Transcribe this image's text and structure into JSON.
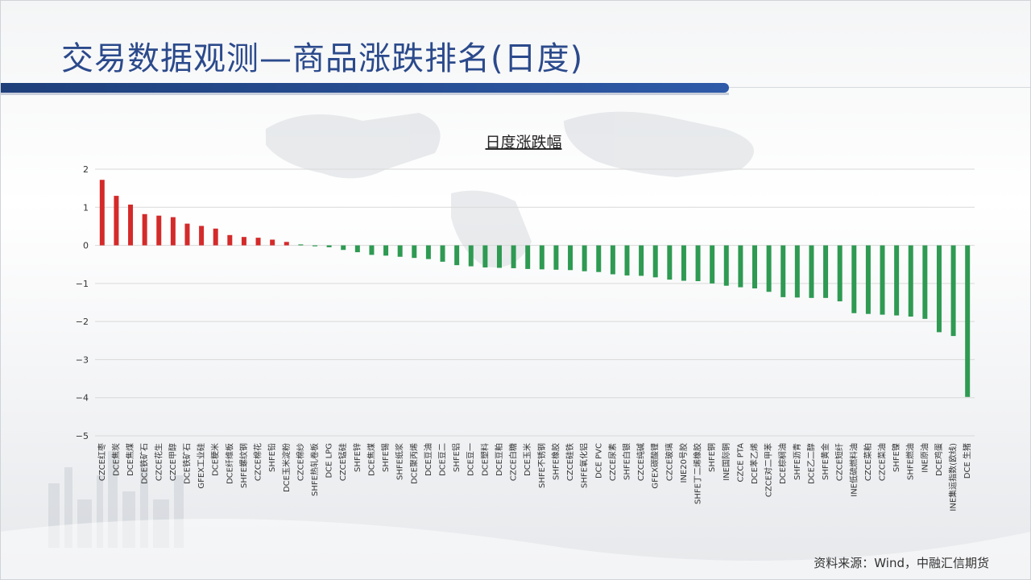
{
  "page": {
    "title": "交易数据观测—商品涨跌排名(日度)",
    "source": "资料来源：Wind，中融汇信期货"
  },
  "colors": {
    "up": "#d42a2a",
    "down": "#2e9a52",
    "title": "#2b4a8c",
    "grid": "#d9d9d9"
  },
  "chart_data": {
    "type": "bar",
    "title": "日度涨跌幅",
    "xlabel": "",
    "ylabel": "",
    "ylim": [
      -5,
      2
    ],
    "yticks": [
      2,
      1,
      0,
      -1,
      -2,
      -3,
      -4,
      -5
    ],
    "grid": true,
    "categories": [
      "CZCE红枣",
      "DCE焦炭",
      "DCE焦煤",
      "DCE铁矿石",
      "CZCE花生",
      "CZCE甲醇",
      "DCE铁矿石",
      "GFEX工业硅",
      "DCE粳米",
      "DCE纤维板",
      "SHFE螺纹钢",
      "CZCE棉花",
      "SHFE铅",
      "DCE玉米淀粉",
      "CZCE棉纱",
      "SHFE热轧卷板",
      "DCE LPG",
      "CZCE锰硅",
      "SHFE锌",
      "DCE焦煤",
      "SHFE锡",
      "SHFE纸浆",
      "DCE聚丙烯",
      "DCE豆油",
      "DCE豆二",
      "SHFE铝",
      "DCE豆一",
      "DCE塑料",
      "DCE豆粕",
      "CZCE白糖",
      "DCE玉米",
      "SHFE不锈钢",
      "SHFE橡胶",
      "CZCE硅铁",
      "SHFE氧化铝",
      "DCE PVC",
      "CZCE尿素",
      "SHFE白银",
      "CZCE纯碱",
      "GFEX碳酸锂",
      "CZCE玻璃",
      "INE20号胶",
      "SHFE丁二烯橡胶",
      "SHFE铜",
      "INE国际铜",
      "CZCE PTA",
      "DCE苯乙烯",
      "CZCE对二甲苯",
      "DCE棕榈油",
      "SHFE沥青",
      "DCE乙二醇",
      "SHFE黄金",
      "CZCE短纤",
      "INE低硫燃料油",
      "CZCE菜粕",
      "CZCE菜油",
      "SHFE镍",
      "SHFE燃油",
      "INE原油",
      "DCE鸡蛋",
      "INE集运指数(欧线)",
      "DCE 生猪"
    ],
    "values": [
      1.72,
      1.3,
      1.07,
      0.82,
      0.78,
      0.74,
      0.57,
      0.51,
      0.44,
      0.27,
      0.22,
      0.2,
      0.15,
      0.09,
      0.0,
      -0.02,
      -0.05,
      -0.12,
      -0.18,
      -0.25,
      -0.27,
      -0.3,
      -0.33,
      -0.36,
      -0.43,
      -0.52,
      -0.55,
      -0.58,
      -0.59,
      -0.6,
      -0.62,
      -0.63,
      -0.64,
      -0.65,
      -0.68,
      -0.7,
      -0.76,
      -0.79,
      -0.8,
      -0.84,
      -0.9,
      -0.93,
      -0.94,
      -1.0,
      -1.06,
      -1.1,
      -1.13,
      -1.22,
      -1.36,
      -1.37,
      -1.38,
      -1.38,
      -1.47,
      -1.78,
      -1.8,
      -1.82,
      -1.84,
      -1.87,
      -1.93,
      -2.28,
      -2.38,
      -3.98
    ]
  }
}
